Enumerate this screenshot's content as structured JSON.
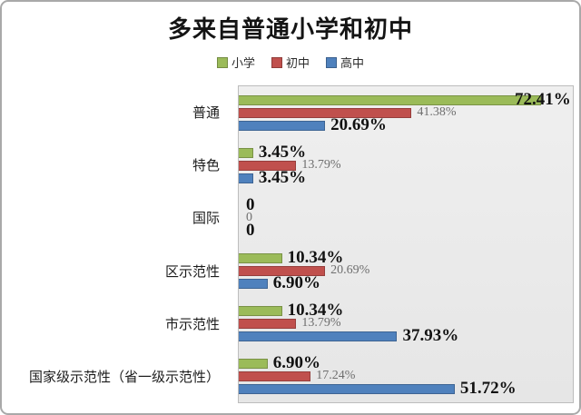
{
  "chart_data": {
    "type": "bar",
    "orientation": "horizontal",
    "title": "多来自普通小学和初中",
    "categories": [
      "普通",
      "特色",
      "国际",
      "区示范性",
      "市示范性",
      "国家级示范性（省一级示范性）"
    ],
    "series": [
      {
        "name": "小学",
        "color": "#9bbb59",
        "label_style": "bold-black",
        "values": [
          72.41,
          3.45,
          0,
          10.34,
          10.34,
          6.9
        ],
        "labels": [
          "72.41%",
          "3.45%",
          "0",
          "10.34%",
          "10.34%",
          "6.90%"
        ]
      },
      {
        "name": "初中",
        "color": "#c0504d",
        "label_style": "gray-regular",
        "values": [
          41.38,
          13.79,
          0,
          20.69,
          13.79,
          17.24
        ],
        "labels": [
          "41.38%",
          "13.79%",
          "0",
          "20.69%",
          "13.79%",
          "17.24%"
        ]
      },
      {
        "name": "高中",
        "color": "#4f81bd",
        "label_style": "bold-black",
        "values": [
          20.69,
          3.45,
          0,
          6.9,
          37.93,
          51.72
        ],
        "labels": [
          "20.69%",
          "3.45%",
          "0",
          "6.90%",
          "37.93%",
          "51.72%"
        ]
      }
    ],
    "xlim": [
      0,
      80
    ],
    "x_axis_visible": false,
    "gridlines": false,
    "data_labels": true,
    "legend_position": "top",
    "plot_background": "#e9e9e9"
  },
  "legend": {
    "items": [
      {
        "label": "小学",
        "color": "#9bbb59"
      },
      {
        "label": "初中",
        "color": "#c0504d"
      },
      {
        "label": "高中",
        "color": "#4f81bd"
      }
    ]
  }
}
